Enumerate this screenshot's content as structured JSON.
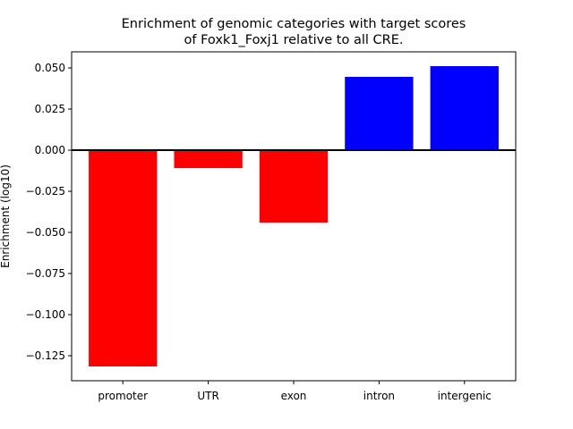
{
  "chart_data": {
    "type": "bar",
    "title": [
      "Enrichment of genomic categories with target scores",
      "of Foxk1_Foxj1 relative to all CRE."
    ],
    "y_label": "Enrichment (log10)",
    "categories": [
      "promoter",
      "UTR",
      "exon",
      "intron",
      "intergenic"
    ],
    "values": [
      -0.1315,
      -0.0109,
      -0.044,
      0.0446,
      0.0511
    ],
    "colors": [
      "#ff0000",
      "#ff0000",
      "#ff0000",
      "#0000ff",
      "#0000ff"
    ],
    "ylim": [
      -0.1402,
      0.0598
    ],
    "yticks": [
      {
        "value": -0.125,
        "label": "−0.125"
      },
      {
        "value": -0.1,
        "label": "−0.100"
      },
      {
        "value": -0.075,
        "label": "−0.075"
      },
      {
        "value": -0.05,
        "label": "−0.050"
      },
      {
        "value": -0.025,
        "label": "−0.025"
      },
      {
        "value": 0,
        "label": "0.000"
      },
      {
        "value": 0.025,
        "label": "0.025"
      },
      {
        "value": 0.05,
        "label": "0.050"
      }
    ]
  }
}
